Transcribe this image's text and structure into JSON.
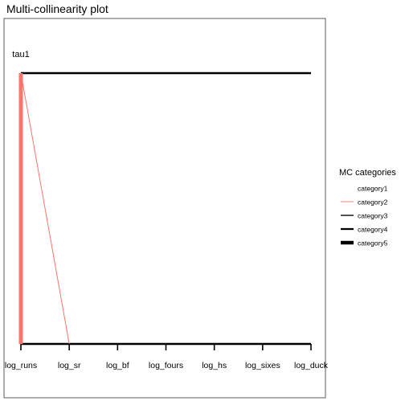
{
  "chart_data": {
    "type": "line",
    "title": "Multi-collinearity plot",
    "node_label": "tau1",
    "categories": [
      "log_runs",
      "log_sr",
      "log_bf",
      "log_fours",
      "log_hs",
      "log_sixes",
      "log_duck"
    ],
    "legend": {
      "title": "MC categories",
      "position": "right",
      "entries": [
        {
          "label": "category1",
          "color": "#ffffff",
          "weight": 1
        },
        {
          "label": "category2",
          "color": "#f8766d",
          "weight": 2
        },
        {
          "label": "category3",
          "color": "#000000",
          "weight": 3
        },
        {
          "label": "category4",
          "color": "#000000",
          "weight": 4
        },
        {
          "label": "category5",
          "color": "#000000",
          "weight": 5
        }
      ]
    },
    "edges": [
      {
        "from": "tau1",
        "to": "log_runs",
        "category": "category5",
        "color": "#f8766d"
      },
      {
        "from": "tau1",
        "to": "log_sr",
        "category": "category2",
        "color": "#f8766d"
      }
    ],
    "colors": {
      "accent": "#f8766d",
      "axis": "#000000",
      "frame": "#333333"
    }
  }
}
